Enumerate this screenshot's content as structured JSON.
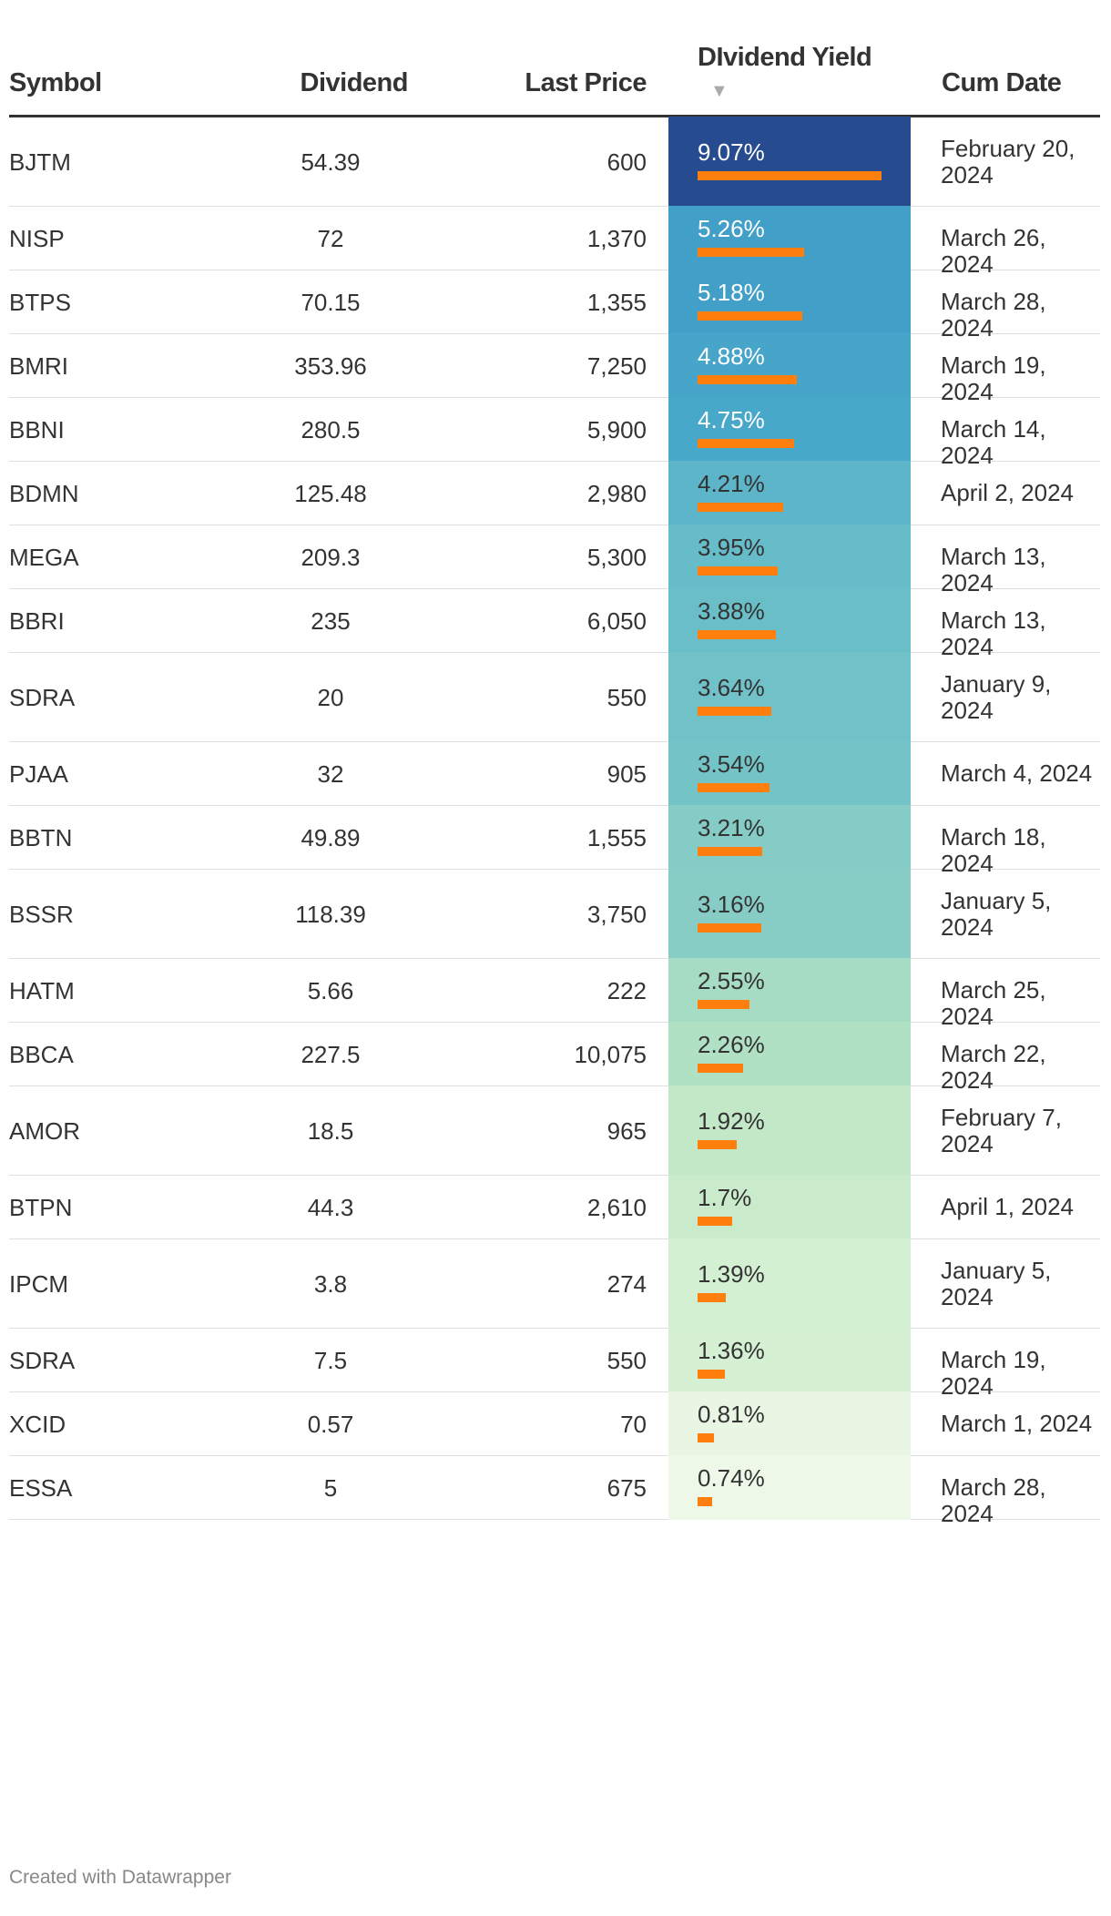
{
  "chart_data": {
    "type": "table",
    "columns": [
      "Symbol",
      "Dividend",
      "Last Price",
      "DIvidend Yield",
      "Cum Date"
    ],
    "sorted_by": "DIvidend Yield",
    "sort_order": "descending",
    "rows": [
      {
        "symbol": "BJTM",
        "dividend": "54.39",
        "last_price": "600",
        "yield_label": "9.07%",
        "yield": 9.07,
        "cum_date": "February 20, 2024",
        "color": "#264b8f"
      },
      {
        "symbol": "NISP",
        "dividend": "72",
        "last_price": "1,370",
        "yield_label": "5.26%",
        "yield": 5.26,
        "cum_date": "March 26, 2024",
        "color": "#42a0c8"
      },
      {
        "symbol": "BTPS",
        "dividend": "70.15",
        "last_price": "1,355",
        "yield_label": "5.18%",
        "yield": 5.18,
        "cum_date": "March 28, 2024",
        "color": "#42a0c8"
      },
      {
        "symbol": "BMRI",
        "dividend": "353.96",
        "last_price": "7,250",
        "yield_label": "4.88%",
        "yield": 4.88,
        "cum_date": "March 19, 2024",
        "color": "#46a5c9"
      },
      {
        "symbol": "BBNI",
        "dividend": "280.5",
        "last_price": "5,900",
        "yield_label": "4.75%",
        "yield": 4.75,
        "cum_date": "March 14, 2024",
        "color": "#48a8ca"
      },
      {
        "symbol": "BDMN",
        "dividend": "125.48",
        "last_price": "2,980",
        "yield_label": "4.21%",
        "yield": 4.21,
        "cum_date": "April 2, 2024",
        "color": "#5cb5c8"
      },
      {
        "symbol": "MEGA",
        "dividend": "209.3",
        "last_price": "5,300",
        "yield_label": "3.95%",
        "yield": 3.95,
        "cum_date": "March 13, 2024",
        "color": "#66bcc8"
      },
      {
        "symbol": "BBRI",
        "dividend": "235",
        "last_price": "6,050",
        "yield_label": "3.88%",
        "yield": 3.88,
        "cum_date": "March 13, 2024",
        "color": "#69bec8"
      },
      {
        "symbol": "SDRA",
        "dividend": "20",
        "last_price": "550",
        "yield_label": "3.64%",
        "yield": 3.64,
        "cum_date": "January 9, 2024",
        "color": "#70c2c8"
      },
      {
        "symbol": "PJAA",
        "dividend": "32",
        "last_price": "905",
        "yield_label": "3.54%",
        "yield": 3.54,
        "cum_date": "March 4, 2024",
        "color": "#74c4c7"
      },
      {
        "symbol": "BBTN",
        "dividend": "49.89",
        "last_price": "1,555",
        "yield_label": "3.21%",
        "yield": 3.21,
        "cum_date": "March 18, 2024",
        "color": "#84ccc5"
      },
      {
        "symbol": "BSSR",
        "dividend": "118.39",
        "last_price": "3,750",
        "yield_label": "3.16%",
        "yield": 3.16,
        "cum_date": "January 5, 2024",
        "color": "#87cdc5"
      },
      {
        "symbol": "HATM",
        "dividend": "5.66",
        "last_price": "222",
        "yield_label": "2.55%",
        "yield": 2.55,
        "cum_date": "March 25, 2024",
        "color": "#a6dcc3"
      },
      {
        "symbol": "BBCA",
        "dividend": "227.5",
        "last_price": "10,075",
        "yield_label": "2.26%",
        "yield": 2.26,
        "cum_date": "March 22, 2024",
        "color": "#b1e1c4"
      },
      {
        "symbol": "AMOR",
        "dividend": "18.5",
        "last_price": "965",
        "yield_label": "1.92%",
        "yield": 1.92,
        "cum_date": "February 7, 2024",
        "color": "#c2e8c8"
      },
      {
        "symbol": "BTPN",
        "dividend": "44.3",
        "last_price": "2,610",
        "yield_label": "1.7%",
        "yield": 1.7,
        "cum_date": "April 1, 2024",
        "color": "#c9ebcb"
      },
      {
        "symbol": "IPCM",
        "dividend": "3.8",
        "last_price": "274",
        "yield_label": "1.39%",
        "yield": 1.39,
        "cum_date": "January 5, 2024",
        "color": "#d4f0d2"
      },
      {
        "symbol": "SDRA",
        "dividend": "7.5",
        "last_price": "550",
        "yield_label": "1.36%",
        "yield": 1.36,
        "cum_date": "March 19, 2024",
        "color": "#d5f0d3"
      },
      {
        "symbol": "XCID",
        "dividend": "0.57",
        "last_price": "70",
        "yield_label": "0.81%",
        "yield": 0.81,
        "cum_date": "March 1, 2024",
        "color": "#e8f6e3"
      },
      {
        "symbol": "ESSA",
        "dividend": "5",
        "last_price": "675",
        "yield_label": "0.74%",
        "yield": 0.74,
        "cum_date": "March 28, 2024",
        "color": "#eef8e8"
      }
    ],
    "bar_color": "#ff7f0e",
    "bar_max": 9.07
  },
  "header_text_color": "#333333",
  "footer": "Created with Datawrapper"
}
